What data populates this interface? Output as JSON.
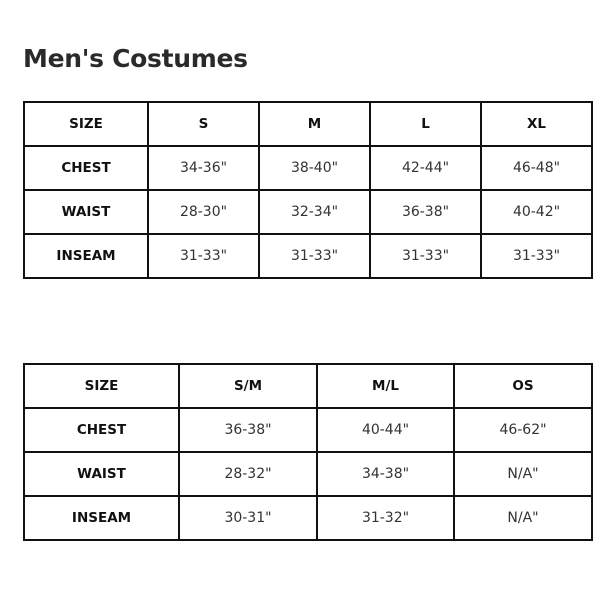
{
  "title": "Men's Costumes",
  "table1": {
    "header": [
      "SIZE",
      "S",
      "M",
      "L",
      "XL"
    ],
    "rows": [
      [
        "CHEST",
        "34-36\"",
        "38-40\"",
        "42-44\"",
        "46-48\""
      ],
      [
        "WAIST",
        "28-30\"",
        "32-34\"",
        "36-38\"",
        "40-42\""
      ],
      [
        "INSEAM",
        "31-33\"",
        "31-33\"",
        "31-33\"",
        "31-33\""
      ]
    ]
  },
  "table2": {
    "header": [
      "SIZE",
      "S/M",
      "M/L",
      "OS"
    ],
    "rows": [
      [
        "CHEST",
        "36-38\"",
        "40-44\"",
        "46-62\""
      ],
      [
        "WAIST",
        "28-32\"",
        "34-38\"",
        "N/A\""
      ],
      [
        "INSEAM",
        "30-31\"",
        "31-32\"",
        "N/A\""
      ]
    ]
  }
}
